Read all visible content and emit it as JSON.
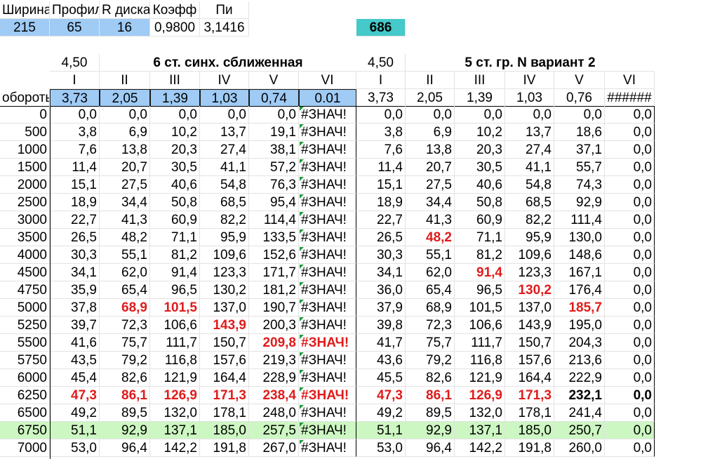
{
  "params": {
    "headers": [
      "Ширина",
      "Профиль",
      "R диска",
      "Коэфф",
      "Пи"
    ],
    "values": [
      "215",
      "65",
      "16",
      "0,9800",
      "3,1416"
    ],
    "result": "686"
  },
  "left_block": {
    "ratio": "4,50",
    "title": "6 ст. синх. сближенная",
    "gears": [
      "I",
      "II",
      "III",
      "IV",
      "V",
      "VI"
    ],
    "ratios": [
      "3,73",
      "2,05",
      "1,39",
      "1,03",
      "0,74",
      "0.01"
    ]
  },
  "right_block": {
    "ratio": "4,50",
    "title": "5 ст. гр. N вариант 2",
    "gears": [
      "I",
      "II",
      "III",
      "IV",
      "V",
      "VI"
    ],
    "ratios": [
      "3,73",
      "2,05",
      "1,39",
      "1,03",
      "0,76",
      "######"
    ]
  },
  "rpm_label": "обороты",
  "rows": [
    {
      "rpm": "0",
      "left": [
        "0,0",
        "0,0",
        "0,0",
        "0,0",
        "0,0",
        "#ЗНАЧ!"
      ],
      "right": [
        "0,0",
        "0,0",
        "0,0",
        "0,0",
        "0,0",
        "0,0"
      ]
    },
    {
      "rpm": "500",
      "left": [
        "3,8",
        "6,9",
        "10,2",
        "13,7",
        "19,1",
        "#ЗНАЧ!"
      ],
      "right": [
        "3,8",
        "6,9",
        "10,2",
        "13,7",
        "18,6",
        "0,0"
      ]
    },
    {
      "rpm": "1000",
      "left": [
        "7,6",
        "13,8",
        "20,3",
        "27,4",
        "38,1",
        "#ЗНАЧ!"
      ],
      "right": [
        "7,6",
        "13,8",
        "20,3",
        "27,4",
        "37,1",
        "0,0"
      ]
    },
    {
      "rpm": "1500",
      "left": [
        "11,4",
        "20,7",
        "30,5",
        "41,1",
        "57,2",
        "#ЗНАЧ!"
      ],
      "right": [
        "11,4",
        "20,7",
        "30,5",
        "41,1",
        "55,7",
        "0,0"
      ]
    },
    {
      "rpm": "2000",
      "left": [
        "15,1",
        "27,5",
        "40,6",
        "54,8",
        "76,3",
        "#ЗНАЧ!"
      ],
      "right": [
        "15,1",
        "27,5",
        "40,6",
        "54,8",
        "74,3",
        "0,0"
      ]
    },
    {
      "rpm": "2500",
      "left": [
        "18,9",
        "34,4",
        "50,8",
        "68,5",
        "95,4",
        "#ЗНАЧ!"
      ],
      "right": [
        "18,9",
        "34,4",
        "50,8",
        "68,5",
        "92,9",
        "0,0"
      ]
    },
    {
      "rpm": "3000",
      "left": [
        "22,7",
        "41,3",
        "60,9",
        "82,2",
        "114,4",
        "#ЗНАЧ!"
      ],
      "right": [
        "22,7",
        "41,3",
        "60,9",
        "82,2",
        "111,4",
        "0,0"
      ]
    },
    {
      "rpm": "3500",
      "left": [
        "26,5",
        "48,2",
        "71,1",
        "95,9",
        "133,5",
        "#ЗНАЧ!"
      ],
      "right": [
        "26,5",
        "48,2",
        "71,1",
        "95,9",
        "130,0",
        "0,0"
      ]
    },
    {
      "rpm": "4000",
      "left": [
        "30,3",
        "55,1",
        "81,2",
        "109,6",
        "152,6",
        "#ЗНАЧ!"
      ],
      "right": [
        "30,3",
        "55,1",
        "81,2",
        "109,6",
        "148,6",
        "0,0"
      ]
    },
    {
      "rpm": "4500",
      "left": [
        "34,1",
        "62,0",
        "91,4",
        "123,3",
        "171,7",
        "#ЗНАЧ!"
      ],
      "right": [
        "34,1",
        "62,0",
        "91,4",
        "123,3",
        "167,1",
        "0,0"
      ]
    },
    {
      "rpm": "4750",
      "left": [
        "35,9",
        "65,4",
        "96,5",
        "130,2",
        "181,2",
        "#ЗНАЧ!"
      ],
      "right": [
        "36,0",
        "65,4",
        "96,5",
        "130,2",
        "176,4",
        "0,0"
      ]
    },
    {
      "rpm": "5000",
      "left": [
        "37,8",
        "68,9",
        "101,5",
        "137,0",
        "190,7",
        "#ЗНАЧ!"
      ],
      "right": [
        "37,9",
        "68,9",
        "101,5",
        "137,0",
        "185,7",
        "0,0"
      ]
    },
    {
      "rpm": "5250",
      "left": [
        "39,7",
        "72,3",
        "106,6",
        "143,9",
        "200,3",
        "#ЗНАЧ!"
      ],
      "right": [
        "39,8",
        "72,3",
        "106,6",
        "143,9",
        "195,0",
        "0,0"
      ]
    },
    {
      "rpm": "5500",
      "left": [
        "41,6",
        "75,7",
        "111,7",
        "150,7",
        "209,8",
        "#ЗНАЧ!"
      ],
      "right": [
        "41,7",
        "75,7",
        "111,7",
        "150,7",
        "204,3",
        "0,0"
      ]
    },
    {
      "rpm": "5750",
      "left": [
        "43,5",
        "79,2",
        "116,8",
        "157,6",
        "219,3",
        "#ЗНАЧ!"
      ],
      "right": [
        "43,6",
        "79,2",
        "116,8",
        "157,6",
        "213,6",
        "0,0"
      ]
    },
    {
      "rpm": "6000",
      "left": [
        "45,4",
        "82,6",
        "121,9",
        "164,4",
        "228,9",
        "#ЗНАЧ!"
      ],
      "right": [
        "45,5",
        "82,6",
        "121,9",
        "164,4",
        "222,9",
        "0,0"
      ]
    },
    {
      "rpm": "6250",
      "left": [
        "47,3",
        "86,1",
        "126,9",
        "171,3",
        "238,4",
        "#ЗНАЧ!"
      ],
      "right": [
        "47,3",
        "86,1",
        "126,9",
        "171,3",
        "232,1",
        "0,0"
      ]
    },
    {
      "rpm": "6500",
      "left": [
        "49,2",
        "89,5",
        "132,0",
        "178,1",
        "248,0",
        "#ЗНАЧ!"
      ],
      "right": [
        "49,2",
        "89,5",
        "132,0",
        "178,1",
        "241,4",
        "0,0"
      ]
    },
    {
      "rpm": "6750",
      "left": [
        "51,1",
        "92,9",
        "137,1",
        "185,0",
        "257,5",
        "#ЗНАЧ!"
      ],
      "right": [
        "51,1",
        "92,9",
        "137,1",
        "185,0",
        "250,7",
        "0,0"
      ]
    },
    {
      "rpm": "7000",
      "left": [
        "53,0",
        "96,4",
        "142,2",
        "191,8",
        "267,0",
        "#ЗНАЧ!"
      ],
      "right": [
        "53,0",
        "96,4",
        "142,2",
        "191,8",
        "260,0",
        "0,0"
      ]
    }
  ],
  "highlights": {
    "left_red": {
      "7": [],
      "11": [
        1,
        2
      ],
      "12": [
        3
      ],
      "13": [
        4,
        5
      ],
      "16": [
        0,
        1,
        2,
        3,
        4,
        5
      ]
    },
    "right_red": {
      "7": [
        1
      ],
      "9": [
        2
      ],
      "10": [
        3
      ],
      "11": [
        4
      ],
      "16": [
        0,
        1,
        2,
        3
      ]
    },
    "right_bold": {
      "16": [
        4,
        5
      ]
    },
    "green_row": 18
  }
}
